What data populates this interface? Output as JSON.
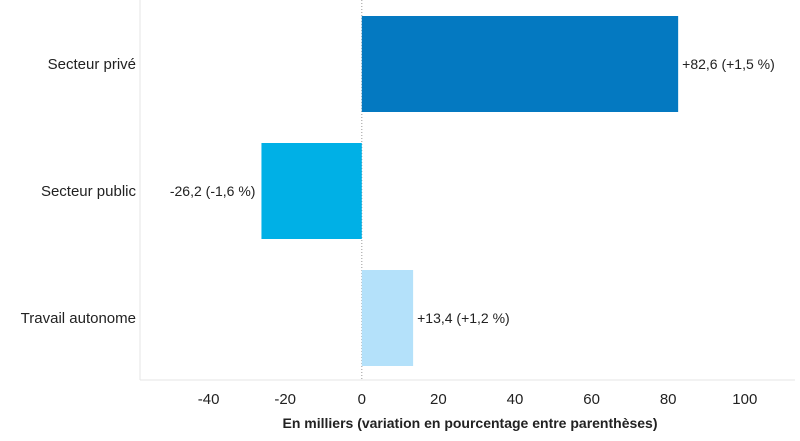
{
  "chart_data": {
    "type": "bar",
    "orientation": "horizontal",
    "categories": [
      "Secteur privé",
      "Secteur public",
      "Travail autonome"
    ],
    "values": [
      82.6,
      -26.2,
      13.4
    ],
    "data_labels": [
      "+82,6 (+1,5 %)",
      "-26,2 (-1,6 %)",
      "+13,4 (+1,2 %)"
    ],
    "colors": [
      "#0479c1",
      "#00b0e6",
      "#b4e1fa"
    ],
    "xlabel": "En milliers (variation en pourcentage entre parenthèses)",
    "xticks": [
      "-40",
      "-20",
      "0",
      "20",
      "40",
      "60",
      "80",
      "100"
    ],
    "xtick_values": [
      -40,
      -20,
      0,
      20,
      40,
      60,
      80,
      100
    ],
    "xlim": [
      -58,
      114
    ],
    "grid": false,
    "zero_line": "dotted",
    "legend": "none"
  }
}
